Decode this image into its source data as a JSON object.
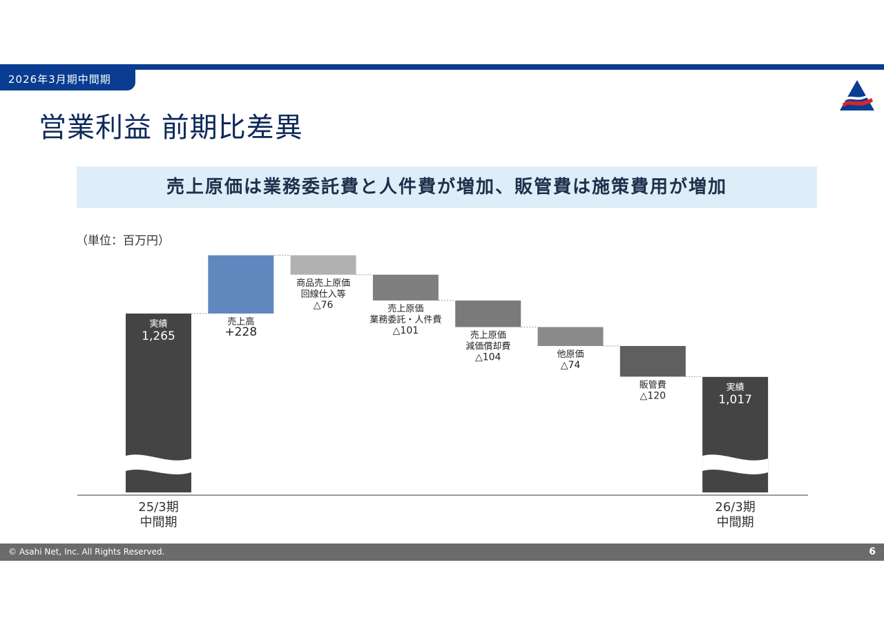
{
  "header": {
    "period_tab": "2026年3月期中間期",
    "logo_icon": "triangle-logo-icon"
  },
  "title": "営業利益 前期比差異",
  "subtitle": "売上原価は業務委託費と人件費が増加、販管費は施策費用が増加",
  "unit": "（単位：百万円）",
  "chart_data": {
    "type": "waterfall",
    "title": "営業利益 前期比差異",
    "unit": "百万円",
    "axis_break": true,
    "ylim": [
      0,
      1300
    ],
    "steps": [
      {
        "kind": "total",
        "value": 1265,
        "label": [
          "実績"
        ],
        "value_label": "1,265",
        "x_label": [
          "25/3期",
          "中間期"
        ],
        "color": "#444444"
      },
      {
        "kind": "delta",
        "value": 228,
        "label": [
          "売上高"
        ],
        "value_label": "+228",
        "color": "#6187bf"
      },
      {
        "kind": "delta",
        "value": -76,
        "label": [
          "商品売上原価",
          "回線仕入等"
        ],
        "value_label": "△76",
        "color": "#b1b1b1"
      },
      {
        "kind": "delta",
        "value": -101,
        "label": [
          "売上原価",
          "業務委託・人件費"
        ],
        "value_label": "△101",
        "color": "#7f7f7f"
      },
      {
        "kind": "delta",
        "value": -104,
        "label": [
          "売上原価",
          "減価償却費"
        ],
        "value_label": "△104",
        "color": "#7a7a7a"
      },
      {
        "kind": "delta",
        "value": -74,
        "label": [
          "他原価"
        ],
        "value_label": "△74",
        "color": "#8a8a8a"
      },
      {
        "kind": "delta",
        "value": -120,
        "label": [
          "販管費"
        ],
        "value_label": "△120",
        "color": "#5f5f5f"
      },
      {
        "kind": "total",
        "value": 1017,
        "label": [
          "実績"
        ],
        "value_label": "1,017",
        "x_label": [
          "26/3期",
          "中間期"
        ],
        "color": "#444444"
      }
    ]
  },
  "footer": {
    "copyright": "© Asahi Net, Inc. All Rights Reserved.",
    "page_number": "6"
  }
}
